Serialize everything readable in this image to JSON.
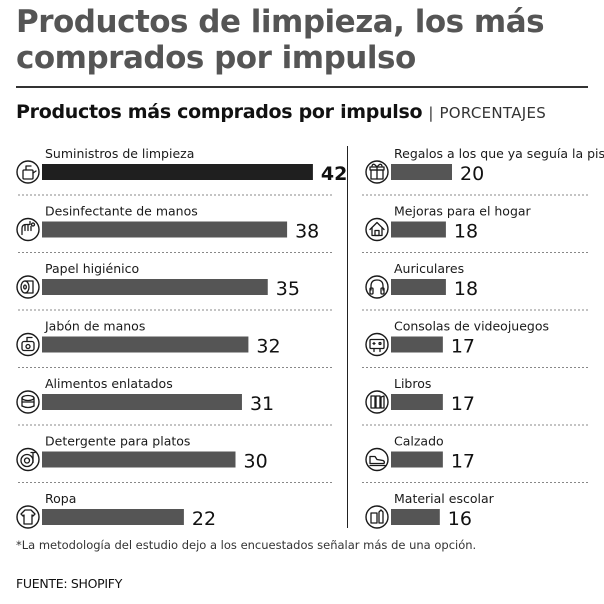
{
  "header": {
    "title": "Productos de limpieza, los más comprados por impulso",
    "subtitle": "Productos más comprados por impulso",
    "separator": "|",
    "unit": "PORCENTAJES"
  },
  "footnote": "*La metodología del estudio dejo a los encuestados señalar más de una opción.",
  "source": "FUENTE: SHOPIFY",
  "colors": {
    "bar": "#555555",
    "bar_highlight": "#1f1f1f",
    "text": "#1a1a1a",
    "title": "#555555"
  },
  "chart_data": {
    "type": "bar",
    "orientation": "horizontal",
    "title": "Productos más comprados por impulso",
    "unit": "PORCENTAJES",
    "categories": [
      "Suministros de limpieza",
      "Desinfectante de manos",
      "Papel higiénico",
      "Jabón de manos",
      "Alimentos enlatados",
      "Detergente para platos",
      "Ropa",
      "Regalos a los que ya seguía la pista",
      "Mejoras para el hogar",
      "Auriculares",
      "Consolas de videojuegos",
      "Libros",
      "Calzado",
      "Material escolar"
    ],
    "values": [
      42,
      38,
      35,
      32,
      31,
      30,
      22,
      20,
      18,
      18,
      17,
      17,
      17,
      16
    ],
    "value_labels": [
      "42",
      "38",
      "35",
      "32",
      "31",
      "30",
      "22",
      "20",
      "18",
      "18",
      "17",
      "17",
      "17",
      "16"
    ],
    "icons": [
      "cleaning-supplies-icon",
      "hand-sanitizer-icon",
      "toilet-paper-icon",
      "hand-soap-icon",
      "canned-food-icon",
      "dish-detergent-icon",
      "clothing-icon",
      "gift-icon",
      "home-improvement-icon",
      "headphones-icon",
      "video-game-console-icon",
      "books-icon",
      "footwear-icon",
      "school-supplies-icon"
    ],
    "highlight_index": 0
  }
}
